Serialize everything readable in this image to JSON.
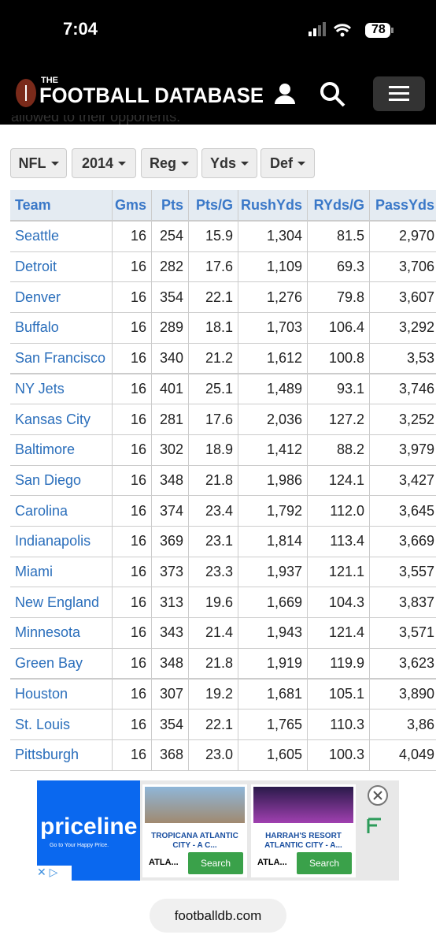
{
  "status_bar": {
    "time": "7:04",
    "battery": "78"
  },
  "header": {
    "logo_small": "THE",
    "logo": "FOOTBALL DATABASE"
  },
  "intro_text": "allowed to their opponents.",
  "filters": [
    "NFL",
    "2014",
    "Reg",
    "Yds",
    "Def"
  ],
  "table": {
    "columns": [
      "Team",
      "Gms",
      "Pts",
      "Pts/G",
      "RushYds",
      "RYds/G",
      "PassYds"
    ],
    "rows": [
      [
        "Seattle",
        "16",
        "254",
        "15.9",
        "1,304",
        "81.5",
        "2,970"
      ],
      [
        "Detroit",
        "16",
        "282",
        "17.6",
        "1,109",
        "69.3",
        "3,706"
      ],
      [
        "Denver",
        "16",
        "354",
        "22.1",
        "1,276",
        "79.8",
        "3,607"
      ],
      [
        "Buffalo",
        "16",
        "289",
        "18.1",
        "1,703",
        "106.4",
        "3,292"
      ],
      [
        "San Francisco",
        "16",
        "340",
        "21.2",
        "1,612",
        "100.8",
        "3,53"
      ],
      [
        "NY Jets",
        "16",
        "401",
        "25.1",
        "1,489",
        "93.1",
        "3,746"
      ],
      [
        "Kansas City",
        "16",
        "281",
        "17.6",
        "2,036",
        "127.2",
        "3,252"
      ],
      [
        "Baltimore",
        "16",
        "302",
        "18.9",
        "1,412",
        "88.2",
        "3,979"
      ],
      [
        "San Diego",
        "16",
        "348",
        "21.8",
        "1,986",
        "124.1",
        "3,427"
      ],
      [
        "Carolina",
        "16",
        "374",
        "23.4",
        "1,792",
        "112.0",
        "3,645"
      ],
      [
        "Indianapolis",
        "16",
        "369",
        "23.1",
        "1,814",
        "113.4",
        "3,669"
      ],
      [
        "Miami",
        "16",
        "373",
        "23.3",
        "1,937",
        "121.1",
        "3,557"
      ],
      [
        "New England",
        "16",
        "313",
        "19.6",
        "1,669",
        "104.3",
        "3,837"
      ],
      [
        "Minnesota",
        "16",
        "343",
        "21.4",
        "1,943",
        "121.4",
        "3,571"
      ],
      [
        "Green Bay",
        "16",
        "348",
        "21.8",
        "1,919",
        "119.9",
        "3,623"
      ],
      [
        "Houston",
        "16",
        "307",
        "19.2",
        "1,681",
        "105.1",
        "3,890"
      ],
      [
        "St. Louis",
        "16",
        "354",
        "22.1",
        "1,765",
        "110.3",
        "3,86"
      ],
      [
        "Pittsburgh",
        "16",
        "368",
        "23.0",
        "1,605",
        "100.3",
        "4,049"
      ]
    ]
  },
  "ad": {
    "brand": "priceline",
    "tagline": "Go to Your Happy Price.",
    "cards": [
      {
        "title": "TROPICANA ATLANTIC CITY - A C...",
        "location": "ATLA...",
        "button": "Search"
      },
      {
        "title": "HARRAH'S RESORT ATLANTIC CITY - A...",
        "location": "ATLA...",
        "button": "Search"
      }
    ]
  },
  "url_bar": "footballdb.com"
}
